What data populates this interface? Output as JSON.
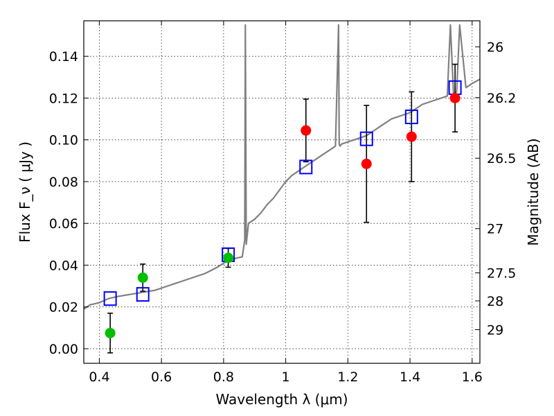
{
  "chart_data": {
    "type": "scatter",
    "xlabel": "Wavelength  λ (μm)",
    "ylabel": "Flux  F_ν  ( μJy )",
    "ylabel_right": "Magnitude (AB)",
    "xlim": [
      0.35,
      1.625
    ],
    "ylim": [
      -0.007,
      0.157
    ],
    "grid": true,
    "x_ticks": [
      0.4,
      0.6,
      0.8,
      1.0,
      1.2,
      1.4,
      1.6
    ],
    "x_tick_labels": [
      "0.4",
      "0.6",
      "0.8",
      "1",
      "1.2",
      "1.4",
      "1.6"
    ],
    "y_ticks": [
      0.0,
      0.02,
      0.04,
      0.06,
      0.08,
      0.1,
      0.12,
      0.14
    ],
    "y_tick_labels": [
      "0.00",
      "0.02",
      "0.04",
      "0.06",
      "0.08",
      "0.10",
      "0.12",
      "0.14"
    ],
    "right_ticks": [
      {
        "label": "26",
        "flux": 0.1445
      },
      {
        "label": "26.2",
        "flux": 0.1202
      },
      {
        "label": "26.5",
        "flux": 0.0912
      },
      {
        "label": "27",
        "flux": 0.0575
      },
      {
        "label": "27.5",
        "flux": 0.0363
      },
      {
        "label": "28",
        "flux": 0.0229
      },
      {
        "label": "29",
        "flux": 0.0091
      }
    ],
    "series": [
      {
        "marker": "circle",
        "color": "#00bf00",
        "points": [
          {
            "x": 0.435,
            "y": 0.0075,
            "err": 0.0095
          },
          {
            "x": 0.54,
            "y": 0.034,
            "err": 0.0065
          },
          {
            "x": 0.815,
            "y": 0.0435,
            "err": 0.0045
          }
        ]
      },
      {
        "marker": "circle",
        "color": "#ff0000",
        "points": [
          {
            "x": 1.065,
            "y": 0.1045,
            "err": 0.015
          },
          {
            "x": 1.26,
            "y": 0.0885,
            "err": 0.028
          },
          {
            "x": 1.405,
            "y": 0.1015,
            "err": 0.0215
          },
          {
            "x": 1.545,
            "y": 0.12,
            "err": 0.0162
          }
        ]
      },
      {
        "marker": "open-square",
        "color": "#0000ff",
        "points": [
          {
            "x": 0.435,
            "y": 0.024
          },
          {
            "x": 0.54,
            "y": 0.026
          },
          {
            "x": 0.815,
            "y": 0.045
          },
          {
            "x": 1.065,
            "y": 0.087
          },
          {
            "x": 1.26,
            "y": 0.1005
          },
          {
            "x": 1.405,
            "y": 0.111
          },
          {
            "x": 1.545,
            "y": 0.125
          }
        ]
      },
      {
        "type": "line",
        "color": "#808080",
        "x": [
          0.35,
          0.37,
          0.4,
          0.43,
          0.46,
          0.5,
          0.54,
          0.58,
          0.62,
          0.66,
          0.7,
          0.74,
          0.78,
          0.8,
          0.83,
          0.86,
          0.868,
          0.87,
          0.873,
          0.88,
          0.9,
          0.92,
          0.94,
          0.96,
          0.98,
          1.0,
          1.02,
          1.04,
          1.06,
          1.08,
          1.1,
          1.12,
          1.14,
          1.16,
          1.17,
          1.172,
          1.175,
          1.18,
          1.2,
          1.22,
          1.24,
          1.26,
          1.28,
          1.3,
          1.32,
          1.34,
          1.36,
          1.38,
          1.4,
          1.42,
          1.44,
          1.46,
          1.48,
          1.5,
          1.52,
          1.53,
          1.54,
          1.55,
          1.56,
          1.58,
          1.6,
          1.625
        ],
        "y": [
          0.019,
          0.021,
          0.022,
          0.024,
          0.025,
          0.026,
          0.027,
          0.028,
          0.03,
          0.032,
          0.034,
          0.036,
          0.039,
          0.041,
          0.043,
          0.044,
          0.052,
          0.155,
          0.05,
          0.06,
          0.062,
          0.065,
          0.069,
          0.072,
          0.076,
          0.08,
          0.083,
          0.085,
          0.087,
          0.089,
          0.091,
          0.093,
          0.095,
          0.097,
          0.155,
          0.098,
          0.097,
          0.098,
          0.099,
          0.1,
          0.101,
          0.102,
          0.104,
          0.106,
          0.108,
          0.11,
          0.111,
          0.112,
          0.113,
          0.115,
          0.117,
          0.118,
          0.119,
          0.12,
          0.121,
          0.155,
          0.122,
          0.123,
          0.155,
          0.125,
          0.127,
          0.129
        ]
      }
    ]
  }
}
